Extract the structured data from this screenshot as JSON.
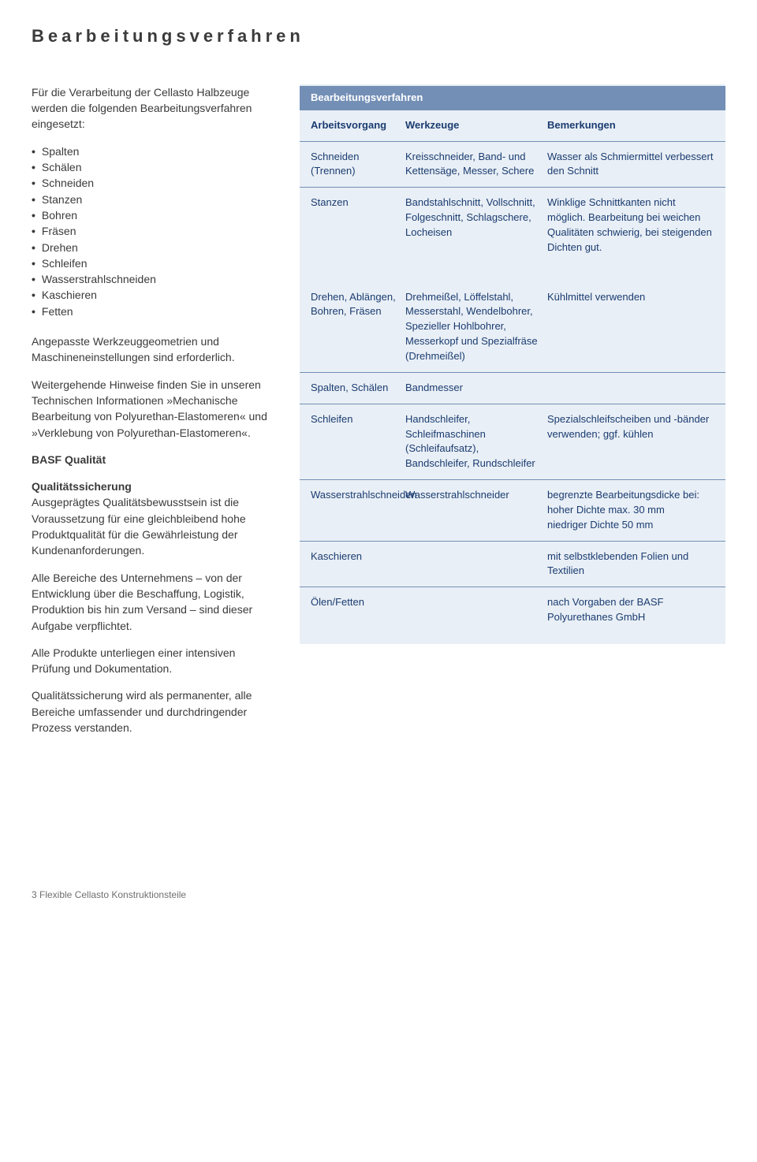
{
  "page_title": "Bearbeitungsverfahren",
  "left": {
    "intro": "Für die Verarbeitung der Cellasto Halbzeuge werden die folgenden Bearbeitungsverfahren eingesetzt:",
    "bullets": [
      "Spalten",
      "Schälen",
      "Schneiden",
      "Stanzen",
      "Bohren",
      "Fräsen",
      "Drehen",
      "Schleifen",
      "Wasserstrahlschneiden",
      "Kaschieren",
      "Fetten"
    ],
    "p1": "Angepasste Werkzeuggeometrien und Maschineneinstellungen sind erforderlich.",
    "p2": "Weitergehende Hinweise finden Sie in unseren Technischen Informationen »Mechanische Bearbeitung von Polyurethan-Elastomeren« und »Verklebung von Polyurethan-Elastomeren«.",
    "h_basf": "BASF Qualität",
    "h_qs": "Qualitätssicherung",
    "p3": "Ausgeprägtes Qualitätsbewusstsein ist die Voraussetzung für eine gleichbleibend hohe Produktqualität für die Gewährleistung der Kundenanforderungen.",
    "p4": "Alle Bereiche des Unternehmens – von der Entwicklung über die Beschaffung, Logistik, Produktion bis hin zum Versand – sind dieser Aufgabe verpflichtet.",
    "p5": "Alle Produkte unterliegen einer intensiven Prüfung und Dokumentation.",
    "p6": "Qualitätssicherung wird als permanenter, alle Bereiche umfassender und durchdringender Prozess verstanden."
  },
  "table": {
    "title": "Bearbeitungsverfahren",
    "headers": {
      "c1": "Arbeitsvorgang",
      "c2": "Werkzeuge",
      "c3": "Bemerkungen"
    },
    "section1": [
      {
        "c1": "Schneiden (Trennen)",
        "c2": "Kreisschneider, Band- und Kettensäge, Messer, Schere",
        "c3": "Wasser als Schmiermittel verbessert den Schnitt"
      },
      {
        "c1": "Stanzen",
        "c2": "Bandstahlschnitt, Vollschnitt, Folgeschnitt, Schlagschere, Locheisen",
        "c3": "Winklige Schnittkanten nicht möglich. Bearbeitung bei weichen Qualitäten schwierig, bei steigenden Dichten gut."
      }
    ],
    "section2": [
      {
        "c1": "Drehen, Ablängen, Bohren, Fräsen",
        "c2": "Drehmeißel, Löffelstahl, Messerstahl, Wendelbohrer, Spezieller Hohlbohrer, Messerkopf und Spezialfräse (Drehmeißel)",
        "c3": "Kühlmittel verwenden"
      },
      {
        "c1": "Spalten, Schälen",
        "c2": "Bandmesser",
        "c3": ""
      },
      {
        "c1": "Schleifen",
        "c2": "Handschleifer, Schleifmaschinen (Schleifaufsatz), Bandschleifer, Rundschleifer",
        "c3": "Spezialschleifscheiben und -bänder verwenden; ggf. kühlen"
      },
      {
        "c1": "Wasserstrahlschneiden",
        "c2": "Wasserstrahlschneider",
        "c3": "begrenzte Bearbeitungsdicke bei:\nhoher Dichte max. 30 mm\nniedriger Dichte 50 mm"
      },
      {
        "c1": "Kaschieren",
        "c2": "",
        "c3": "mit selbstklebenden Folien und Textilien"
      },
      {
        "c1": "Ölen/Fetten",
        "c2": "",
        "c3": "nach Vorgaben der BASF Polyurethanes GmbH"
      }
    ]
  },
  "footer": "3 Flexible Cellasto Konstruktionsteile",
  "colors": {
    "panel_bg": "#e9eff6",
    "panel_title_bg": "#738fb6",
    "panel_title_fg": "#ffffff",
    "row_border": "#738fb6",
    "text_blue": "#1a3c70",
    "body_text": "#3a3a3a"
  }
}
